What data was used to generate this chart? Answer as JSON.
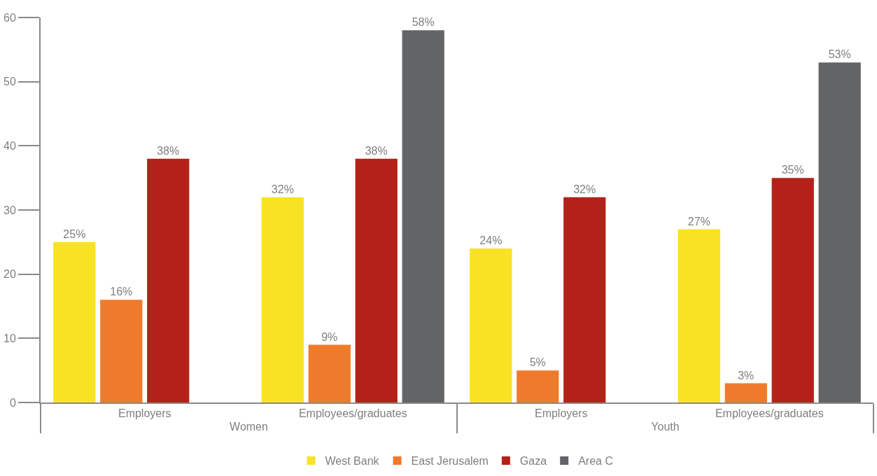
{
  "chart_data": {
    "type": "bar",
    "categories": [
      "Employers",
      "Employees/graduates",
      "Employers",
      "Employees/graduates"
    ],
    "annotations": [
      "Women",
      "Youth"
    ],
    "series": [
      {
        "name": "West Bank",
        "color": "#f9e224",
        "values": [
          25,
          32,
          24,
          27
        ],
        "value_labels": [
          "25%",
          "32%",
          "24%",
          "27%"
        ]
      },
      {
        "name": "East Jerusalem",
        "color": "#ee7b2c",
        "values": [
          16,
          9,
          5,
          3
        ],
        "value_labels": [
          "16%",
          "9%",
          "5%",
          "3%"
        ]
      },
      {
        "name": "Gaza",
        "color": "#b22218",
        "values": [
          38,
          38,
          32,
          35
        ],
        "value_labels": [
          "38%",
          "38%",
          "32%",
          "35%"
        ]
      },
      {
        "name": "Area C",
        "color": "#636466",
        "values": [
          null,
          58,
          null,
          53
        ],
        "value_labels": [
          null,
          "58%",
          null,
          "53%"
        ]
      }
    ],
    "ylim": [
      0,
      60
    ],
    "yticks": [
      0,
      10,
      20,
      30,
      40,
      50,
      60
    ],
    "legend": "bottom"
  }
}
